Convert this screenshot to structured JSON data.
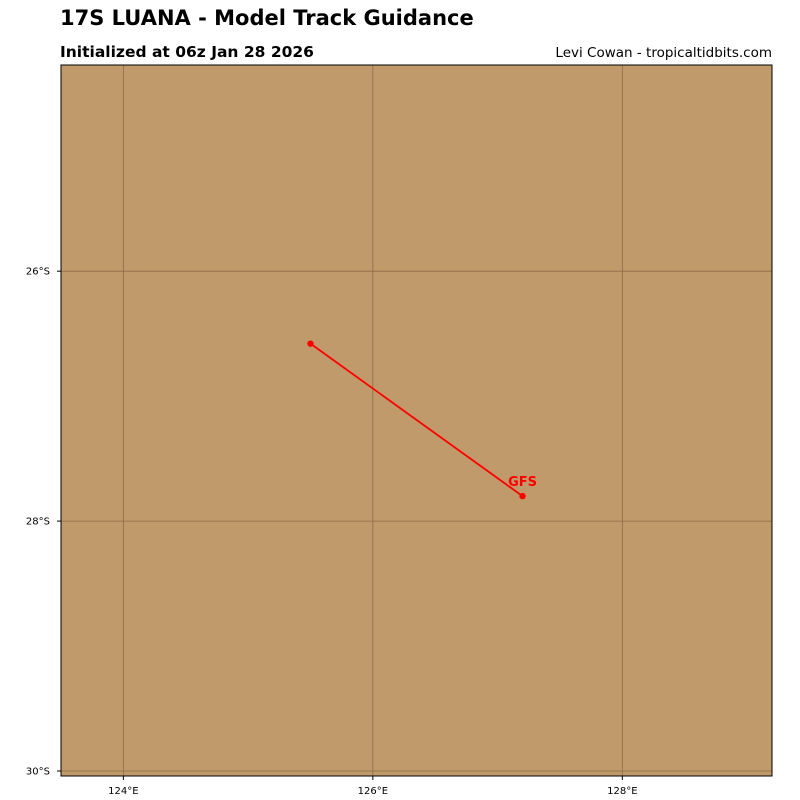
{
  "header": {
    "title": "17S LUANA - Model Track Guidance",
    "subtitle": "Initialized at 06z Jan 28 2026",
    "credit": "Levi Cowan - tropicaltidbits.com"
  },
  "colors": {
    "land": "#c19a6b",
    "gridline": "#8b6b45",
    "track": "#ff0000"
  },
  "chart_data": {
    "type": "line",
    "map_extent": {
      "lon": [
        123.5,
        129.2
      ],
      "lat": [
        -30.04,
        -24.35
      ]
    },
    "lon_ticks": [
      {
        "value": 124,
        "label": "124°E"
      },
      {
        "value": 126,
        "label": "126°E"
      },
      {
        "value": 128,
        "label": "128°E"
      }
    ],
    "lat_ticks": [
      {
        "value": -26,
        "label": "26°S"
      },
      {
        "value": -28,
        "label": "28°S"
      },
      {
        "value": -30,
        "label": "30°S"
      }
    ],
    "series": [
      {
        "name": "GFS",
        "color": "#ff0000",
        "points": [
          {
            "lon": 125.5,
            "lat": -26.58
          },
          {
            "lon": 127.2,
            "lat": -27.8
          }
        ]
      }
    ]
  }
}
